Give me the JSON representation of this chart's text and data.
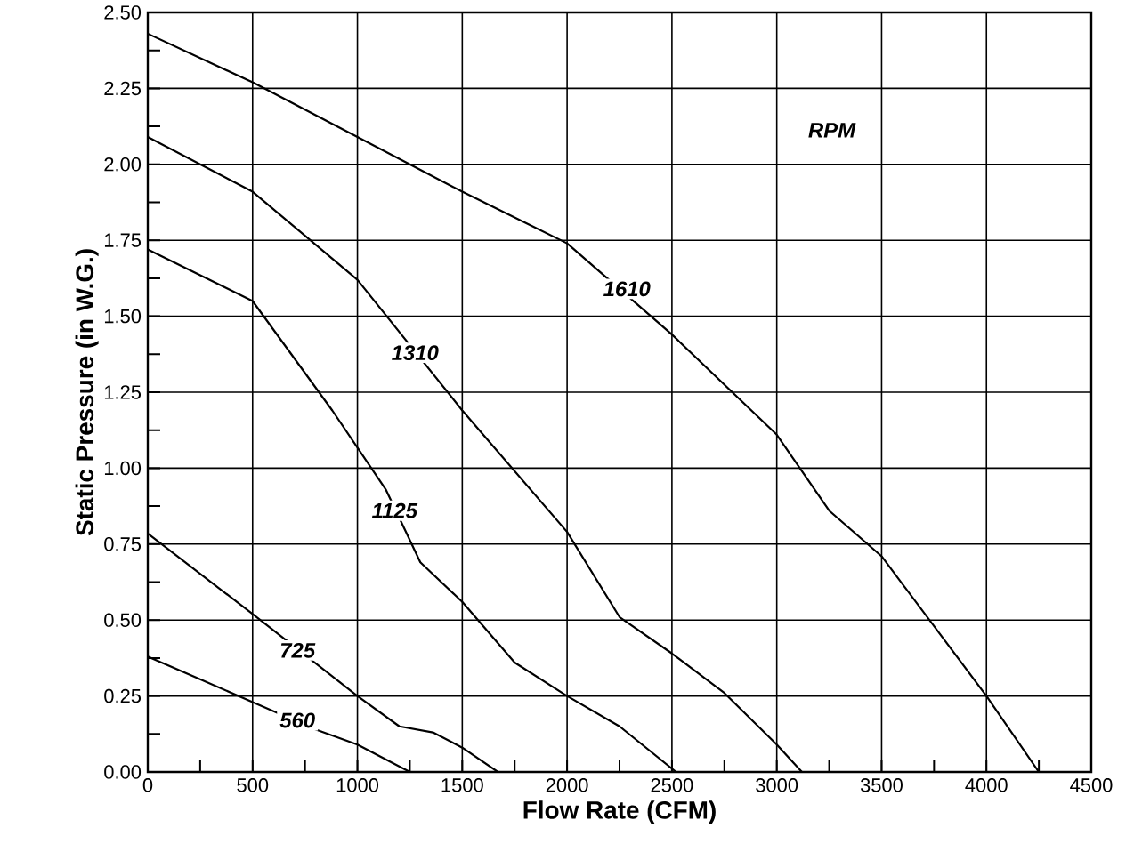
{
  "chart_data": {
    "type": "line",
    "xlabel": "Flow Rate (CFM)",
    "ylabel": "Static Pressure (in W.G.)",
    "xlim": [
      0,
      4500
    ],
    "ylim": [
      0,
      2.5
    ],
    "xticks": [
      0,
      500,
      1000,
      1500,
      2000,
      2500,
      3000,
      3500,
      4000,
      4500
    ],
    "yticks": [
      {
        "value": 0,
        "label": "0.00"
      },
      {
        "value": 0.25,
        "label": "0.25"
      },
      {
        "value": 0.5,
        "label": "0.50"
      },
      {
        "value": 0.75,
        "label": "0.75"
      },
      {
        "value": 1,
        "label": "1.00"
      },
      {
        "value": 1.25,
        "label": "1.25"
      },
      {
        "value": 1.5,
        "label": "1.50"
      },
      {
        "value": 1.75,
        "label": "1.75"
      },
      {
        "value": 2,
        "label": "2.00"
      },
      {
        "value": 2.25,
        "label": "2.25"
      },
      {
        "value": 2.5,
        "label": "2.50"
      }
    ],
    "grid": true,
    "marker": "none",
    "line_style": "solid",
    "series": [
      {
        "color": "#000000",
        "x": [
          0,
          500,
          1000,
          1500,
          2000,
          2500,
          3000,
          3250,
          3500,
          3750,
          4000,
          4250
        ],
        "values": [
          2.43,
          2.27,
          2.09,
          1.91,
          1.74,
          1.44,
          1.11,
          0.86,
          0.71,
          0.48,
          0.25,
          0
        ]
      },
      {
        "color": "#000000",
        "x": [
          0,
          500,
          1000,
          1500,
          2000,
          2250,
          2500,
          2750,
          3000,
          3120
        ],
        "values": [
          2.09,
          1.91,
          1.62,
          1.19,
          0.79,
          0.51,
          0.39,
          0.26,
          0.09,
          0
        ]
      },
      {
        "color": "#000000",
        "x": [
          0,
          500,
          880,
          1135,
          1300,
          1500,
          1750,
          2000,
          2250,
          2520
        ],
        "values": [
          1.72,
          1.55,
          1.19,
          0.93,
          0.69,
          0.56,
          0.36,
          0.25,
          0.15,
          0
        ]
      },
      {
        "color": "#000000",
        "x": [
          0,
          500,
          1000,
          1200,
          1360,
          1500,
          1670
        ],
        "values": [
          0.785,
          0.52,
          0.25,
          0.15,
          0.13,
          0.08,
          0
        ]
      },
      {
        "color": "#000000",
        "x": [
          0,
          500,
          800,
          1000,
          1250
        ],
        "values": [
          0.38,
          0.23,
          0.14,
          0.09,
          0
        ]
      }
    ],
    "annotations": [
      {
        "text": "1610",
        "x": 2285,
        "y": 1.59
      },
      {
        "text": "1310",
        "x": 1275,
        "y": 1.38
      },
      {
        "text": "1125",
        "x": 1177,
        "y": 0.86
      },
      {
        "text": "725",
        "x": 714,
        "y": 0.4
      },
      {
        "text": "560",
        "x": 714,
        "y": 0.17
      },
      "RPM"
    ]
  }
}
